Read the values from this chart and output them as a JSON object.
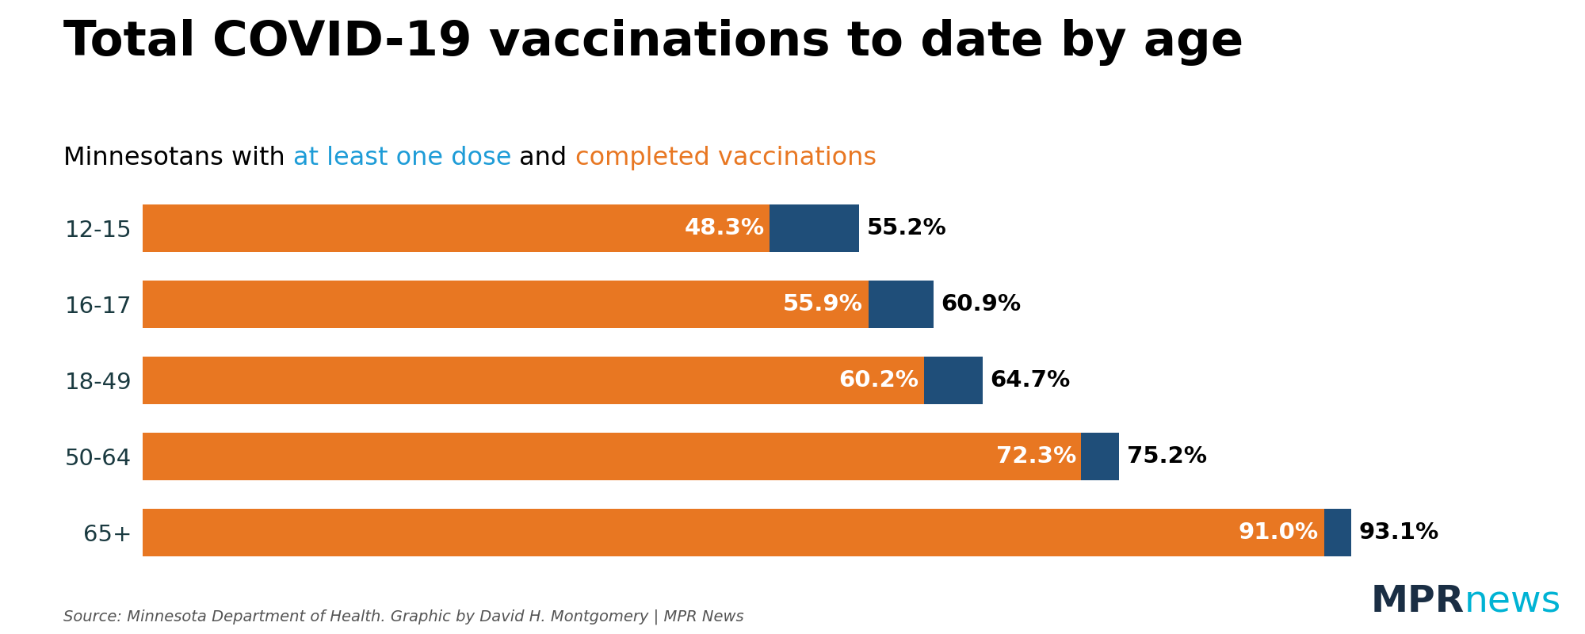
{
  "title": "Total COVID-19 vaccinations to date by age",
  "subtitle_plain": "Minnesotans with ",
  "subtitle_blue": "at least one dose",
  "subtitle_mid": " and ",
  "subtitle_orange": "completed vaccinations",
  "categories": [
    "12-15",
    "16-17",
    "18-49",
    "50-64",
    "65+"
  ],
  "completed_pct": [
    48.3,
    55.9,
    60.2,
    72.3,
    91.0
  ],
  "atleast_pct": [
    55.2,
    60.9,
    64.7,
    75.2,
    93.1
  ],
  "orange_color": "#E87722",
  "blue_color": "#1F4E79",
  "bar_height": 0.62,
  "source_text": "Source: Minnesota Department of Health. Graphic by David H. Montgomery | MPR News",
  "mpr_dark": "#1a2e44",
  "mpr_cyan": "#00b3d4",
  "background_color": "#ffffff",
  "title_fontsize": 44,
  "subtitle_fontsize": 23,
  "label_fontsize": 21,
  "ytick_fontsize": 21,
  "source_fontsize": 14,
  "ytick_color": "#1a3a40"
}
